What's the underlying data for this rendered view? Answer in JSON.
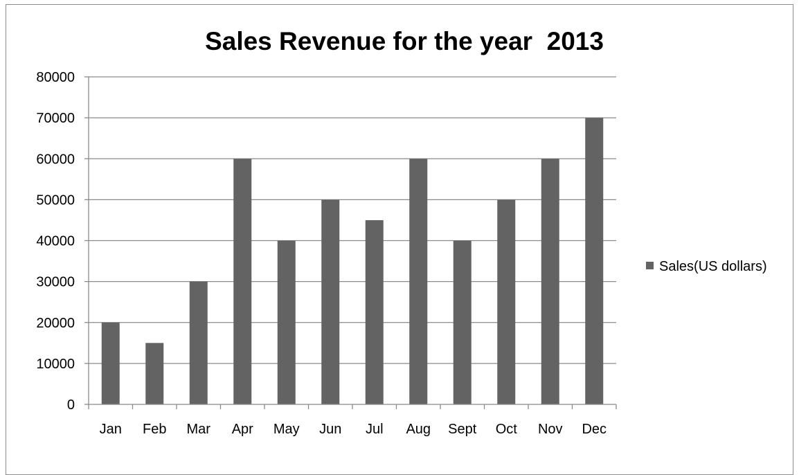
{
  "chart_data": {
    "type": "bar",
    "title": "Sales Revenue for the year  2013",
    "categories": [
      "Jan",
      "Feb",
      "Mar",
      "Apr",
      "May",
      "Jun",
      "Jul",
      "Aug",
      "Sept",
      "Oct",
      "Nov",
      "Dec"
    ],
    "series": [
      {
        "name": "Sales(US dollars)",
        "values": [
          20000,
          15000,
          30000,
          60000,
          40000,
          50000,
          45000,
          60000,
          40000,
          50000,
          60000,
          70000
        ],
        "color": "#636363"
      }
    ],
    "ylim": [
      0,
      80000
    ],
    "yticks": [
      "0",
      "10000",
      "20000",
      "30000",
      "40000",
      "50000",
      "60000",
      "70000",
      "80000"
    ],
    "grid": true,
    "legend_position": "right",
    "xlabel": "",
    "ylabel": ""
  }
}
